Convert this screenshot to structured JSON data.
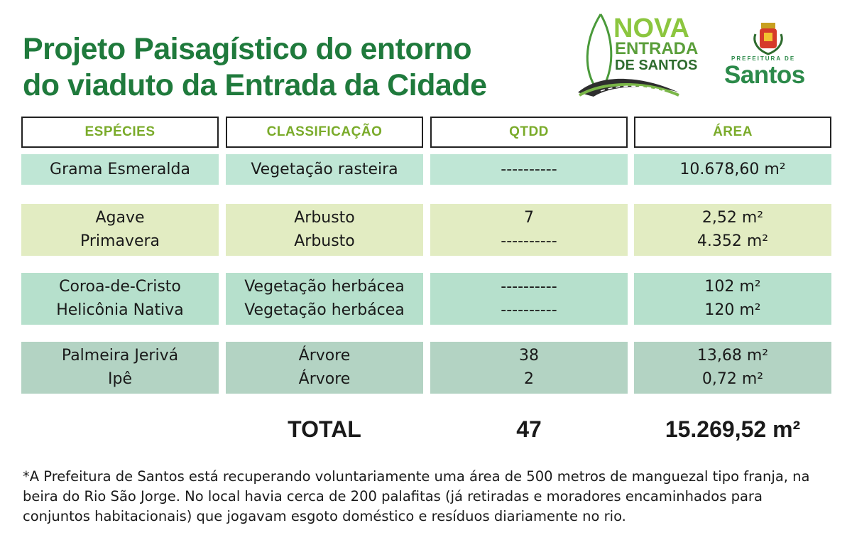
{
  "title": {
    "line1": "Projeto Paisagístico do entorno",
    "line2": "do viaduto da Entrada da Cidade"
  },
  "logos": {
    "nova_entrada": [
      "NOVA",
      "ENTRADA",
      "DE SANTOS"
    ],
    "prefeitura_small": "PREFEITURA DE",
    "prefeitura_big": "Santos"
  },
  "table": {
    "headers": [
      "ESPÉCIES",
      "CLASSIFICAÇÃO",
      "QTDD",
      "ÁREA"
    ],
    "groups": [
      {
        "species": [
          "Grama Esmeralda"
        ],
        "classification": [
          "Vegetação rasteira"
        ],
        "qty": [
          "----------"
        ],
        "area": [
          "10.678,60 m²"
        ]
      },
      {
        "species": [
          "Agave",
          "Primavera"
        ],
        "classification": [
          "Arbusto",
          "Arbusto"
        ],
        "qty": [
          "7",
          "----------"
        ],
        "area": [
          "2,52 m²",
          "4.352 m²"
        ]
      },
      {
        "species": [
          "Coroa-de-Cristo",
          "Helicônia Nativa"
        ],
        "classification": [
          "Vegetação herbácea",
          "Vegetação herbácea"
        ],
        "qty": [
          "----------",
          "----------"
        ],
        "area": [
          "102 m²",
          "120 m²"
        ]
      },
      {
        "species": [
          "Palmeira Jerivá",
          "Ipê"
        ],
        "classification": [
          "Árvore",
          "Árvore"
        ],
        "qty": [
          "38",
          "2"
        ],
        "area": [
          "13,68 m²",
          "0,72 m²"
        ]
      }
    ],
    "total": {
      "label": "TOTAL",
      "qty": "47",
      "area": "15.269,52 m²"
    }
  },
  "footnote": "*A Prefeitura de Santos está recuperando voluntariamente uma área de 500 metros de manguezal tipo franja, na beira do Rio São Jorge. No local havia cerca de 200 palafitas (já retiradas e moradores encaminhados para conjuntos habitacionais) que jogavam esgoto doméstico e resíduos diariamente no rio.",
  "colors": {
    "title_green": "#1f7a3c",
    "header_green": "#7aab2a",
    "row1": "#bfe6d5",
    "row2": "#e2ecc2",
    "row3": "#b6e0cc",
    "row4": "#b3d3c3"
  }
}
